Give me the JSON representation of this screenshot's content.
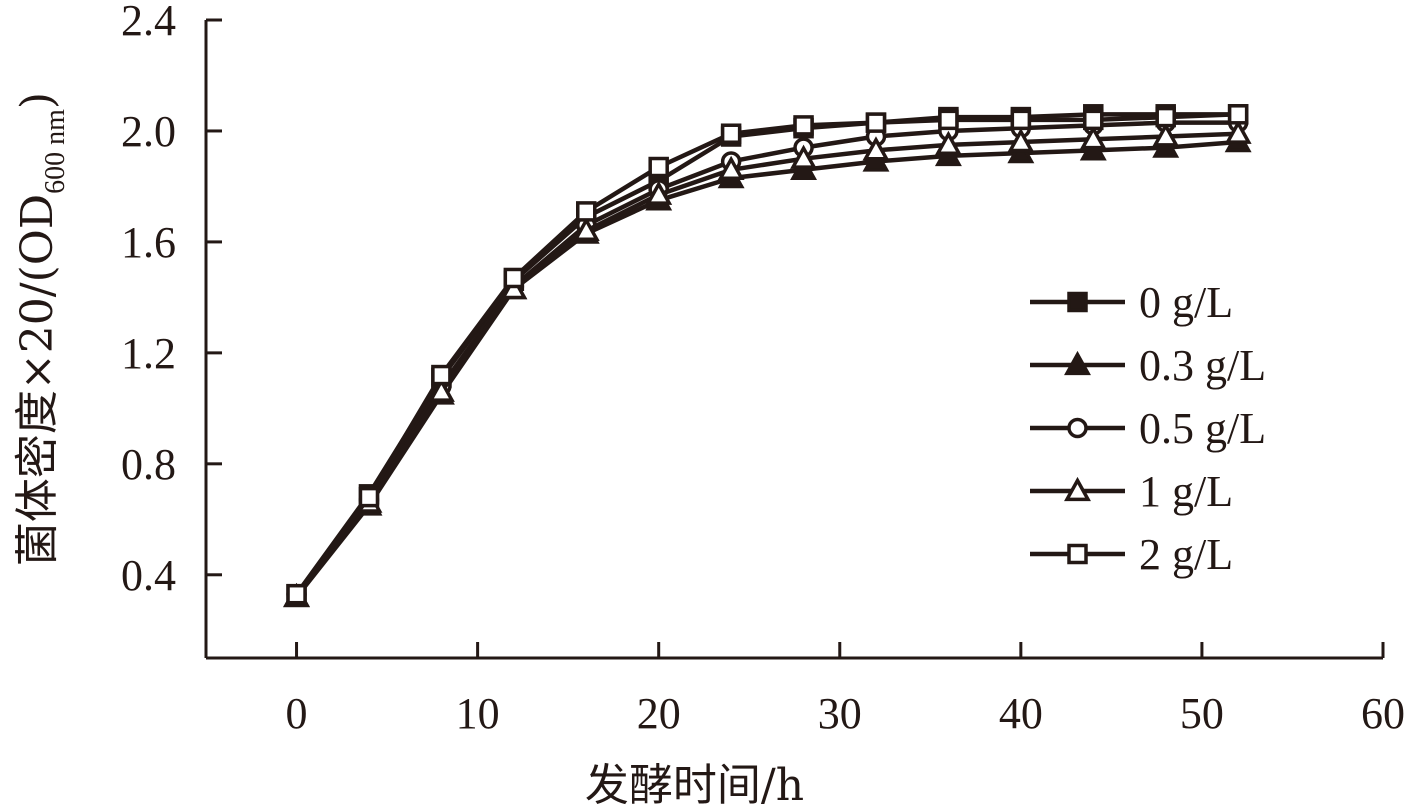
{
  "chart_data": {
    "type": "line",
    "title": "",
    "xlabel": "发酵时间/h",
    "ylabel_main": "菌体密度×20/(OD",
    "ylabel_sub": "600 nm",
    "ylabel_close": ")",
    "xlim": [
      -5,
      60
    ],
    "ylim": [
      0.1,
      2.4
    ],
    "xticks": [
      0,
      10,
      20,
      30,
      40,
      50,
      60
    ],
    "xtick_labels": [
      "0",
      "10",
      "20",
      "30",
      "40",
      "50",
      "60"
    ],
    "yticks": [
      0.4,
      0.8,
      1.2,
      1.6,
      2.0,
      2.4
    ],
    "ytick_labels": [
      "0.4",
      "0.8",
      "1.2",
      "1.6",
      "2.0",
      "2.4"
    ],
    "grid": false,
    "legend_position": "center-right",
    "x": [
      0,
      4,
      8,
      12,
      16,
      20,
      24,
      28,
      32,
      36,
      40,
      44,
      48,
      52
    ],
    "series": [
      {
        "name": "0 g/L",
        "marker": "square-filled",
        "values": [
          0.33,
          0.69,
          1.11,
          1.46,
          1.69,
          1.82,
          1.98,
          2.01,
          2.03,
          2.05,
          2.05,
          2.06,
          2.06,
          2.06
        ]
      },
      {
        "name": "0.3 g/L",
        "marker": "triangle-filled",
        "values": [
          0.32,
          0.65,
          1.05,
          1.43,
          1.63,
          1.75,
          1.83,
          1.86,
          1.89,
          1.91,
          1.92,
          1.93,
          1.94,
          1.96
        ]
      },
      {
        "name": "0.5 g/L",
        "marker": "circle-open",
        "values": [
          0.33,
          0.67,
          1.08,
          1.44,
          1.66,
          1.79,
          1.89,
          1.94,
          1.98,
          2.0,
          2.01,
          2.02,
          2.03,
          2.03
        ]
      },
      {
        "name": "1 g/L",
        "marker": "triangle-open",
        "values": [
          0.32,
          0.66,
          1.06,
          1.43,
          1.64,
          1.77,
          1.86,
          1.9,
          1.93,
          1.95,
          1.96,
          1.97,
          1.98,
          1.99
        ]
      },
      {
        "name": "2 g/L",
        "marker": "square-open",
        "values": [
          0.33,
          0.68,
          1.12,
          1.47,
          1.71,
          1.87,
          1.99,
          2.02,
          2.03,
          2.04,
          2.04,
          2.04,
          2.05,
          2.06
        ]
      }
    ]
  },
  "colors": {
    "ink": "#231815",
    "background": "#ffffff"
  }
}
